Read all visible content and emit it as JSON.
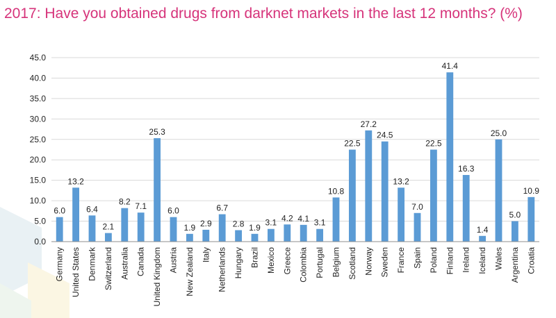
{
  "header": {
    "title": "2017: Have you obtained drugs from darknet markets in the last 12 months? (%)"
  },
  "colors": {
    "title": "#d6337a",
    "bar": "#5b9bd5",
    "grid": "#d9d9d9",
    "axis": "#8c8c8c"
  },
  "chart_data": {
    "type": "bar",
    "title": "2017: Have you obtained drugs from darknet markets in the last 12 months? (%)",
    "xlabel": "",
    "ylabel": "",
    "ylim": [
      0,
      45
    ],
    "yticks": [
      "0.0",
      "5.0",
      "10.0",
      "15.0",
      "20.0",
      "25.0",
      "30.0",
      "35.0",
      "40.0",
      "45.0"
    ],
    "grid": true,
    "legend": "none",
    "categories": [
      "Germany",
      "United States",
      "Denmark",
      "Switzerland",
      "Australia",
      "Canada",
      "United Kingdom",
      "Austria",
      "New Zealand",
      "Italy",
      "Netherlands",
      "Hungary",
      "Brazil",
      "Mexico",
      "Greece",
      "Colombia",
      "Portugal",
      "Belgium",
      "Scotland",
      "Norway",
      "Sweden",
      "France",
      "Spain",
      "Poland",
      "Finland",
      "Ireland",
      "Iceland",
      "Wales",
      "Argentina",
      "Croatia"
    ],
    "values": [
      6.0,
      13.2,
      6.4,
      2.1,
      8.2,
      7.1,
      25.3,
      6.0,
      1.9,
      2.9,
      6.7,
      2.8,
      1.9,
      3.1,
      4.2,
      4.1,
      3.1,
      10.8,
      22.5,
      27.2,
      24.5,
      13.2,
      7.0,
      22.5,
      41.4,
      16.3,
      1.4,
      25.0,
      5.0,
      10.9
    ],
    "value_labels": [
      "6.0",
      "13.2",
      "6.4",
      "2.1",
      "8.2",
      "7.1",
      "25.3",
      "6.0",
      "1.9",
      "2.9",
      "6.7",
      "2.8",
      "1.9",
      "3.1",
      "4.2",
      "4.1",
      "3.1",
      "10.8",
      "22.5",
      "27.2",
      "24.5",
      "13.2",
      "7.0",
      "22.5",
      "41.4",
      "16.3",
      "1.4",
      "25.0",
      "5.0",
      "10.9"
    ]
  }
}
